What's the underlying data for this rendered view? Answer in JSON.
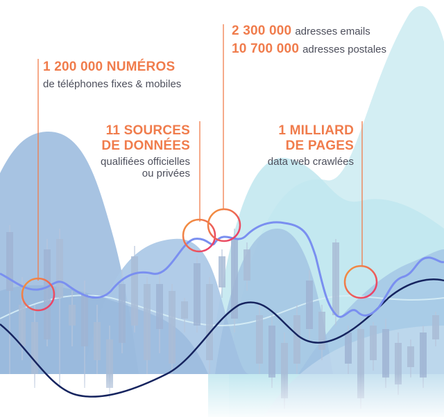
{
  "callouts": {
    "phones": {
      "headline": "1 200 000 NUMÉROS",
      "detail": "de téléphones fixes & mobiles"
    },
    "sources": {
      "headline_line1": "11 SOURCES",
      "headline_line2": "DE DONNÉES",
      "detail_line1": "qualifiées officielles",
      "detail_line2": "ou privées"
    },
    "contacts": {
      "emails_number": "2 300 000",
      "emails_label": "adresses emails",
      "postal_number": "10 700 000",
      "postal_label": "adresses postales"
    },
    "pages": {
      "headline_line1": "1 MILLIARD",
      "headline_line2": "DE PAGES",
      "detail": "data web crawlées"
    }
  },
  "colors": {
    "accent_orange": "#f07c4c",
    "accent_pink": "#e8336f",
    "line_blue": "#7a8ff0",
    "line_navy": "#16245f",
    "mountain_dark": "#8fb2d8",
    "mountain_light": "#bfe6ee",
    "candles": "#a9bcd6"
  },
  "icons": [
    "orange-pink-ring",
    "orange-pink-ring",
    "orange-pink-ring",
    "orange-pink-ring"
  ]
}
